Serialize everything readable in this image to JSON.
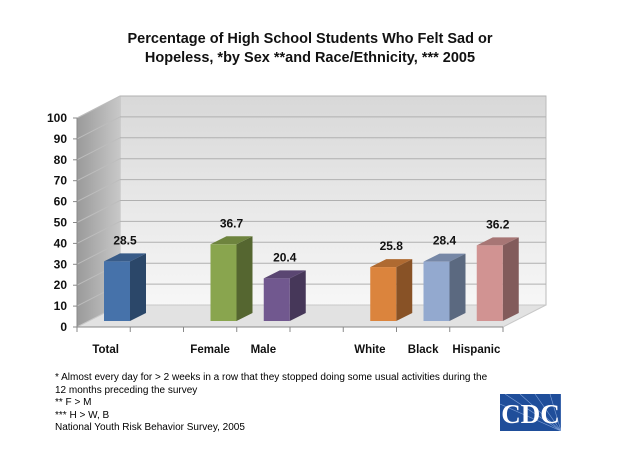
{
  "chart_data": {
    "type": "bar",
    "title_lines": [
      "Percentage of High School Students Who Felt Sad or",
      "Hopeless, *by Sex **and Race/Ethnicity, *** 2005"
    ],
    "categories": [
      "Total",
      "",
      "Female",
      "Male",
      "",
      "White",
      "Black",
      "Hispanic"
    ],
    "values": [
      28.5,
      null,
      36.7,
      20.4,
      null,
      25.8,
      28.4,
      36.2
    ],
    "data_labels": [
      "28.5",
      "",
      "36.7",
      "20.4",
      "",
      "25.8",
      "28.4",
      "36.2"
    ],
    "colors": [
      "#4672aa",
      null,
      "#89a54e",
      "#71588f",
      null,
      "#db843d",
      "#93a9cf",
      "#d19392"
    ],
    "ylim": [
      0,
      100
    ],
    "yticks": [
      "0",
      "10",
      "20",
      "30",
      "40",
      "50",
      "60",
      "70",
      "80",
      "90",
      "100"
    ],
    "grid": true,
    "style": "3d",
    "xlabel": "",
    "ylabel": ""
  },
  "notes": [
    "* Almost every day for > 2 weeks in a row that they stopped doing some usual activities during the",
    "12 months preceding the survey",
    "** F > M",
    "*** H > W, B",
    "National Youth Risk Behavior Survey, 2005"
  ],
  "logo": {
    "text": "CDC",
    "color": "#1f4e9a"
  }
}
